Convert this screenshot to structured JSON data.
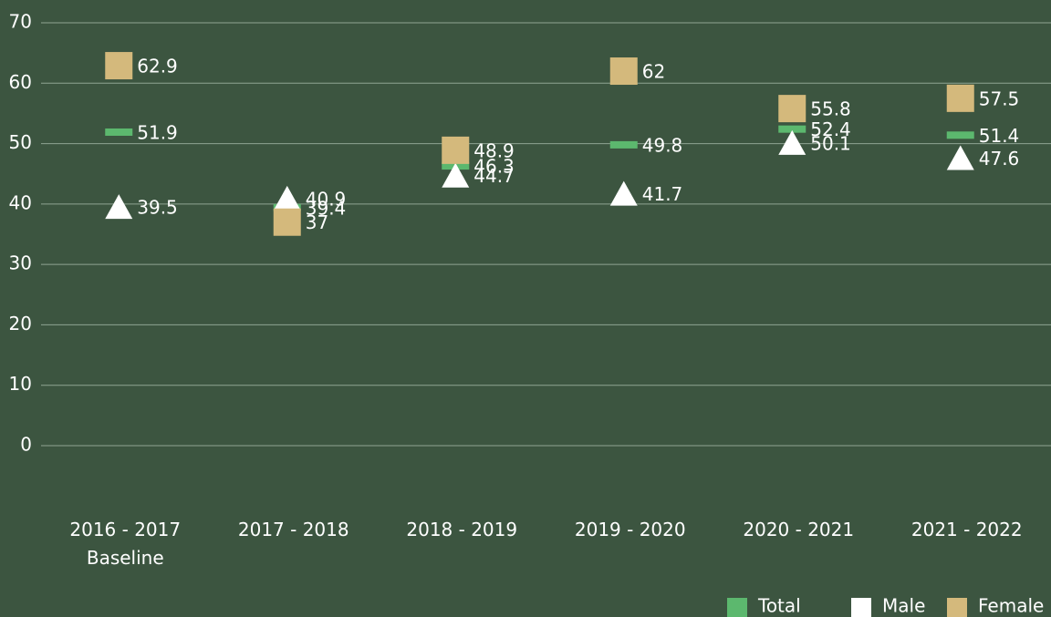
{
  "chart_data": {
    "type": "dot",
    "categories": [
      "2016 - 2017\nBaseline",
      "2017 - 2018",
      "2018 - 2019",
      "2019 - 2020",
      "2020 - 2021",
      "2021 - 2022"
    ],
    "series": [
      {
        "name": "Total",
        "color": "#5cb86e",
        "marker": "bar",
        "values": [
          51.9,
          39.4,
          46.3,
          49.8,
          52.4,
          51.4
        ]
      },
      {
        "name": "Male",
        "color": "#ffffff",
        "marker": "triangle",
        "values": [
          39.5,
          40.9,
          44.7,
          41.7,
          50.1,
          47.6
        ]
      },
      {
        "name": "Female",
        "color": "#d4b97c",
        "marker": "square",
        "values": [
          62.9,
          37,
          48.9,
          62,
          55.8,
          57.5
        ]
      }
    ],
    "ylim": [
      0,
      70
    ],
    "yticks": [
      0,
      10,
      20,
      30,
      40,
      50,
      60,
      70
    ],
    "grid": true,
    "legend": "bottom-right"
  }
}
